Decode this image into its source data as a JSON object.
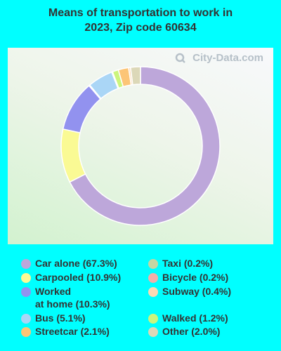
{
  "chart_data": {
    "type": "pie",
    "variant": "donut",
    "title_line1": "Means of transportation to work in",
    "title_line2": "2023, Zip code 60634",
    "watermark": "City-Data.com",
    "slices": [
      {
        "label": "Car alone (67.3%)",
        "value": 67.3,
        "color": "#bda7da"
      },
      {
        "label": "Carpooled (10.9%)",
        "value": 10.9,
        "color": "#fafa94"
      },
      {
        "label_line1": "Worked",
        "label_line2": "at home (10.3%)",
        "value": 10.3,
        "color": "#9292ef"
      },
      {
        "label": "Bus (5.1%)",
        "value": 5.1,
        "color": "#aad6f6"
      },
      {
        "label": "Taxi (0.2%)",
        "value": 0.2,
        "color": "#c6d6a2"
      },
      {
        "label": "Bicycle (0.2%)",
        "value": 0.2,
        "color": "#f1afa9"
      },
      {
        "label": "Walked (1.2%)",
        "value": 1.2,
        "color": "#ccf57d"
      },
      {
        "label": "Streetcar (2.1%)",
        "value": 2.1,
        "color": "#fcc576"
      },
      {
        "label": "Subway (0.4%)",
        "value": 0.4,
        "color": "#fcd9b4"
      },
      {
        "label": "Other (2.0%)",
        "value": 2.0,
        "color": "#dcd8b8"
      }
    ]
  }
}
